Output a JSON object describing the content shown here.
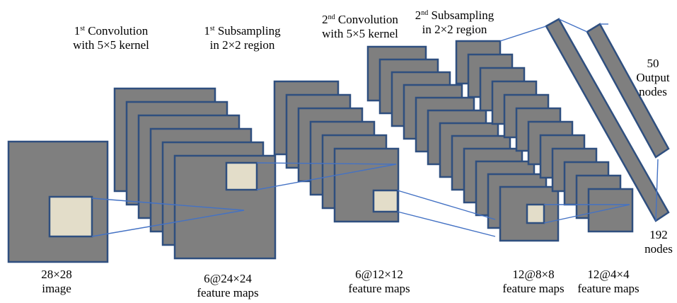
{
  "colors": {
    "map_fill": "#7f7f7f",
    "map_border": "#2f4f7f",
    "receptive_fill": "#e3ddc9",
    "connection_line": "#4472c4"
  },
  "labels": {
    "conv1": {
      "ord": "1",
      "sup": "st",
      "rest": " Convolution",
      "line2": "with 5×5 kernel"
    },
    "sub1": {
      "ord": "1",
      "sup": "st",
      "rest": " Subsampling",
      "line2": "in 2×2 region"
    },
    "conv2": {
      "ord": "2",
      "sup": "nd",
      "rest": " Convolution",
      "line2": "with 5×5 kernel"
    },
    "sub2": {
      "ord": "2",
      "sup": "nd",
      "rest": " Subsampling",
      "line2": "in 2×2 region"
    },
    "output": {
      "line1": "50",
      "line2": "Output",
      "line3": "nodes"
    },
    "nodes192": {
      "line1": "192",
      "line2": "nodes"
    },
    "image": {
      "line1": "28×28",
      "line2": "image"
    },
    "fm1": {
      "line1": "6@24×24",
      "line2": "feature maps"
    },
    "fm2": {
      "line1": "6@12×12",
      "line2": "feature maps"
    },
    "fm3": {
      "line1": "12@8×8",
      "line2": "feature maps"
    },
    "fm4": {
      "line1": "12@4×4",
      "line2": "feature maps"
    }
  }
}
